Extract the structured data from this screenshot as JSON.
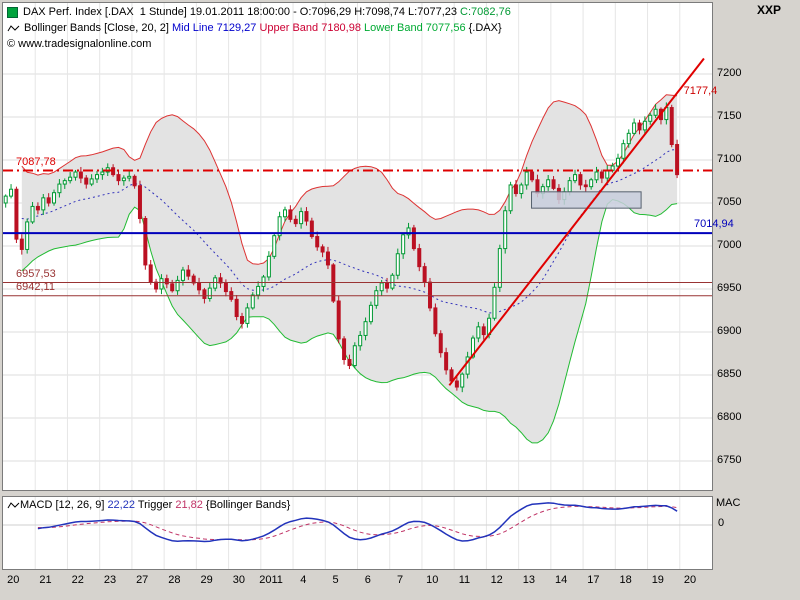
{
  "window": {
    "top_right_label": "XXP",
    "macd_axis_label": "MAC"
  },
  "header": {
    "row1": {
      "text": "DAX Perf. Index [.DAX  1 Stunde] 19.01.2011 18:00:00 - O:7096,29 H:7098,74 L:7077,23 ",
      "close": "C:7082,76"
    },
    "row2": {
      "prefix": "Bollinger Bands [Close, 20, 2] ",
      "mid": "Mid Line 7129,27",
      "upper": " Upper Band 7180,98",
      "lower": " Lower Band 7077,56",
      "suffix": " {.DAX}"
    },
    "row3": {
      "copyright": "© www.tradesignalonline.com"
    }
  },
  "macd_legend": {
    "prefix": "MACD [12, 26, 9] ",
    "value": "22,22",
    "trigger_label": " Trigger ",
    "trigger_value": "21,82",
    "suffix": " {Bollinger Bands}"
  },
  "chart_data": {
    "type": "candlestick",
    "title": "DAX Perf. Index [.DAX 1 Stunde]",
    "last_bar": {
      "time": "19.01.2011 18:00:00",
      "open": 7096.29,
      "high": 7098.74,
      "low": 7077.23,
      "close": 7082.76
    },
    "bollinger": {
      "period": 20,
      "mult": 2,
      "mid": 7129.27,
      "upper": 7180.98,
      "lower": 7077.56
    },
    "macd": {
      "fast": 12,
      "slow": 26,
      "signal": 9,
      "value": 22.22,
      "trigger": 21.82
    },
    "ylim": [
      6750,
      7200
    ],
    "y_ticks": [
      7200,
      7150,
      7100,
      7050,
      7000,
      6950,
      6900,
      6850,
      6800,
      6750
    ],
    "x_labels": [
      "20",
      "21",
      "22",
      "23",
      "27",
      "28",
      "29",
      "30",
      "2011",
      "4",
      "5",
      "6",
      "7",
      "10",
      "11",
      "12",
      "13",
      "14",
      "17",
      "18",
      "19",
      "20"
    ],
    "bars_per_day": 6,
    "first_open": 7050,
    "closes": [
      7058,
      7066,
      7008,
      6996,
      7028,
      7046,
      7042,
      7056,
      7050,
      7062,
      7072,
      7076,
      7080,
      7086,
      7079,
      7072,
      7078,
      7083,
      7086,
      7091,
      7083,
      7076,
      7079,
      7081,
      7070,
      7032,
      6978,
      6958,
      6950,
      6962,
      6956,
      6948,
      6960,
      6972,
      6965,
      6957,
      6949,
      6939,
      6951,
      6963,
      6957,
      6947,
      6938,
      6918,
      6910,
      6928,
      6943,
      6953,
      6964,
      6988,
      7012,
      7034,
      7042,
      7031,
      7026,
      7040,
      7029,
      7011,
      6999,
      6993,
      6978,
      6936,
      6892,
      6868,
      6861,
      6884,
      6896,
      6912,
      6931,
      6948,
      6957,
      6951,
      6966,
      6991,
      7013,
      7021,
      6997,
      6976,
      6958,
      6928,
      6898,
      6876,
      6856,
      6843,
      6836,
      6851,
      6871,
      6893,
      6906,
      6897,
      6916,
      6952,
      6997,
      7041,
      7071,
      7061,
      7071,
      7086,
      7077,
      7061,
      7069,
      7077,
      7067,
      7054,
      7063,
      7076,
      7083,
      7071,
      7069,
      7077,
      7086,
      7079,
      7088,
      7093,
      7102,
      7119,
      7131,
      7143,
      7135,
      7145,
      7152,
      7159,
      7147,
      7161,
      7118,
      7083
    ],
    "levels": [
      {
        "label": "7087,78",
        "value": 7087.78,
        "color": "#dd0000",
        "style": "dashdot",
        "width": 2,
        "side": "left"
      },
      {
        "label": "7014,94",
        "value": 7014.94,
        "color": "#0000bb",
        "style": "solid",
        "width": 2,
        "side": "right"
      },
      {
        "label": "6957,53",
        "value": 6957.53,
        "color": "#993333",
        "style": "solid",
        "width": 1,
        "side": "left"
      },
      {
        "label": "6942,11",
        "value": 6942.11,
        "color": "#993333",
        "style": "solid",
        "width": 1,
        "side": "left"
      }
    ],
    "trendline": {
      "from_day": 13.85,
      "from_price": 6838,
      "to_day": 21.75,
      "to_price": 7218,
      "color": "#e00000",
      "width": 2
    },
    "trend_value_label": {
      "text": "7177,4",
      "x_day": 21.15,
      "price": 7177.4,
      "color": "#cc0000"
    },
    "selection_box": {
      "from_day": 16.4,
      "to_day": 19.8,
      "top_price": 7063,
      "bottom_price": 7044,
      "fill": "#c8cedd",
      "stroke": "#55606e"
    },
    "macd_zero_label": "0",
    "colors": {
      "up": "#009933",
      "down": "#bb1122",
      "upper": "#dd3333",
      "lower": "#22bb33",
      "mid": "#3333bb",
      "band_fill": "#e3e3e3",
      "macd_line": "#2233bb",
      "macd_signal": "#c03366"
    }
  }
}
